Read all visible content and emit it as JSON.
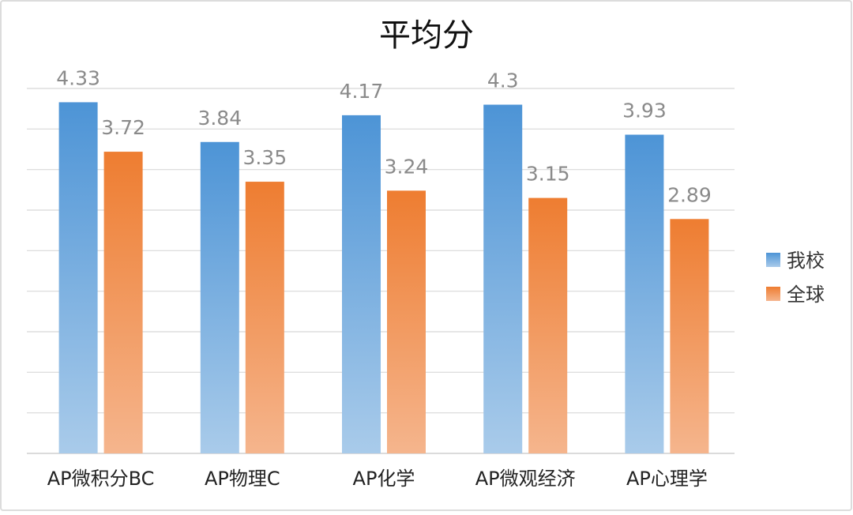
{
  "chart_data": {
    "type": "bar",
    "title": "平均分",
    "categories": [
      "AP微积分BC",
      "AP物理C",
      "AP化学",
      "AP微观经济",
      "AP心理学"
    ],
    "series": [
      {
        "name": "我校",
        "values": [
          4.33,
          3.84,
          4.17,
          4.3,
          3.93
        ],
        "labels": [
          "4.33",
          "3.84",
          "4.17",
          "4.3",
          "3.93"
        ],
        "color_top": "#4d94d6",
        "color_bottom": "#a9cbea"
      },
      {
        "name": "全球",
        "values": [
          3.72,
          3.35,
          3.24,
          3.15,
          2.89
        ],
        "labels": [
          "3.72",
          "3.35",
          "3.24",
          "3.15",
          "2.89"
        ],
        "color_top": "#ee7d31",
        "color_bottom": "#f5b58d"
      }
    ],
    "ylim": [
      0,
      4.5
    ],
    "grid_step": 0.5,
    "grid": true,
    "y_tick_labels_visible": false,
    "legend_position": "right",
    "xlabel": "",
    "ylabel": ""
  }
}
